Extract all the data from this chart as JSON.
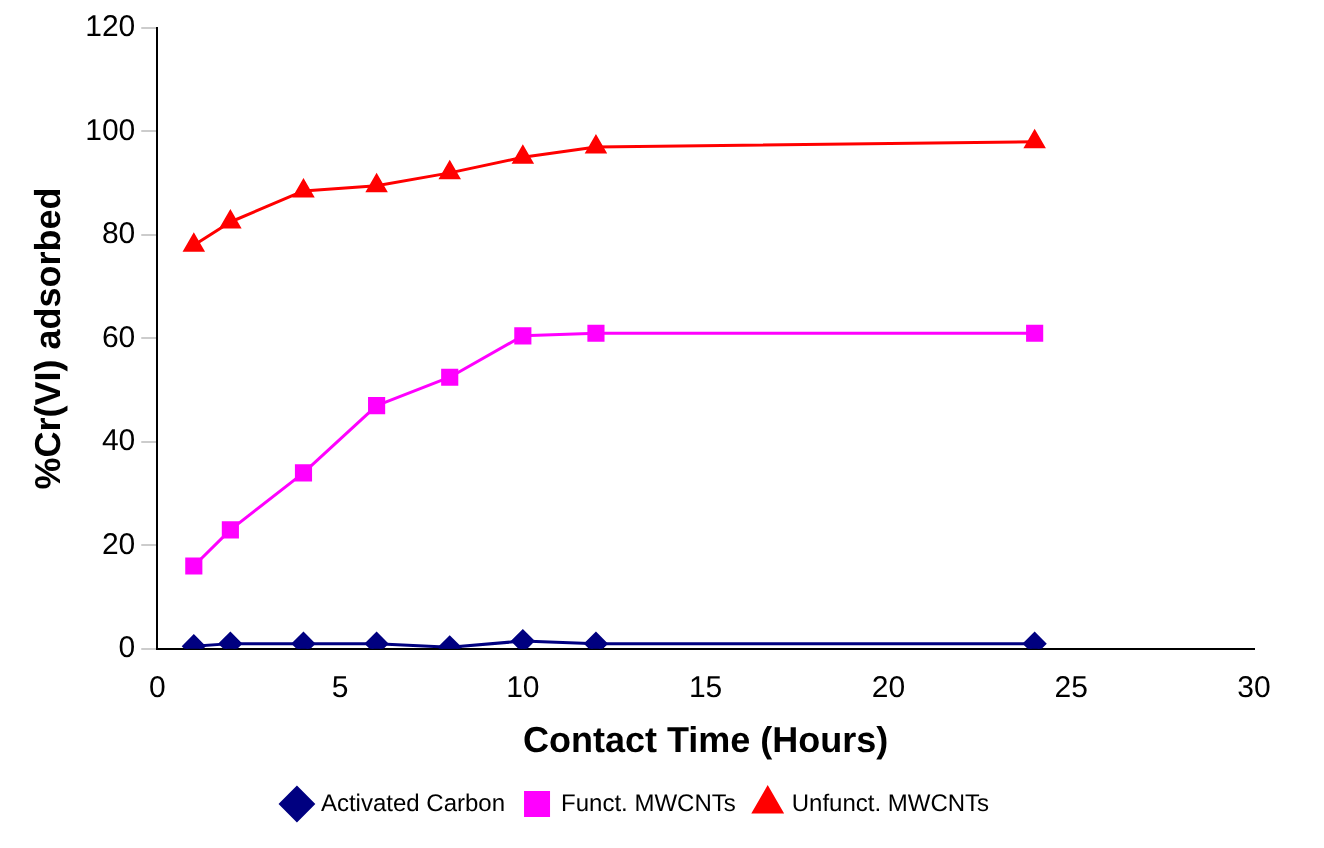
{
  "chart_data": {
    "type": "line",
    "xlabel": "Contact Time (Hours)",
    "ylabel": "%Cr(VI) adsorbed",
    "x": [
      1,
      2,
      4,
      6,
      8,
      10,
      12,
      24
    ],
    "xlim": [
      0,
      30
    ],
    "xticks": [
      0,
      5,
      10,
      15,
      20,
      25,
      30
    ],
    "ylim": [
      0,
      120
    ],
    "yticks": [
      0,
      20,
      40,
      60,
      80,
      100,
      120
    ],
    "grid": false,
    "legend": "bottom",
    "line_style": "solid",
    "series": [
      {
        "name": "Activated Carbon",
        "color": "#000080",
        "marker": "diamond",
        "values": [
          0.5,
          1,
          1,
          1,
          0.3,
          1.5,
          1,
          1
        ]
      },
      {
        "name": "Funct. MWCNTs",
        "color": "#ff00ff",
        "marker": "square",
        "values": [
          16,
          23,
          34,
          47,
          52.5,
          60.5,
          61,
          61
        ]
      },
      {
        "name": "Unfunct. MWCNTs",
        "color": "#ff0000",
        "marker": "triangle",
        "values": [
          78,
          82.5,
          88.5,
          89.5,
          92,
          95,
          97,
          98
        ]
      }
    ]
  }
}
